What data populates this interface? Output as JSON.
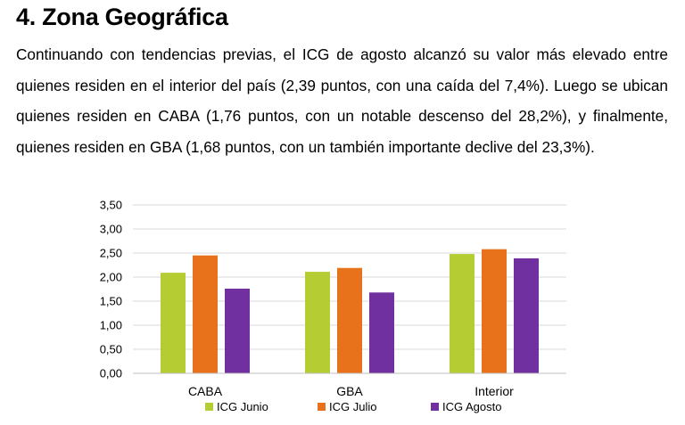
{
  "section": {
    "title": "4. Zona Geográfica",
    "paragraph": "Continuando con tendencias previas, el ICG de agosto alcanzó su valor más elevado entre quienes residen en el interior del país (2,39 puntos, con una caída del 7,4%). Luego se ubican quienes residen en CABA (1,76 puntos, con un notable descenso del 28,2%), y finalmente, quienes residen en GBA (1,68 puntos, con un también importante declive del 23,3%)."
  },
  "chart_data": {
    "type": "bar",
    "title": "",
    "xlabel": "",
    "ylabel": "",
    "categories": [
      "CABA",
      "GBA",
      "Interior"
    ],
    "series": [
      {
        "name": "ICG Junio",
        "values": [
          2.09,
          2.11,
          2.48
        ],
        "color": "#b5cc33"
      },
      {
        "name": "ICG Julio",
        "values": [
          2.45,
          2.19,
          2.58
        ],
        "color": "#e8711c"
      },
      {
        "name": "ICG Agosto",
        "values": [
          1.76,
          1.68,
          2.39
        ],
        "color": "#7030a0"
      }
    ],
    "ylim": [
      0,
      3.5
    ],
    "yticks": [
      "0,00",
      "0,50",
      "1,00",
      "1,50",
      "2,00",
      "2,50",
      "3,00",
      "3,50"
    ],
    "grid": true,
    "legend": "bottom"
  }
}
